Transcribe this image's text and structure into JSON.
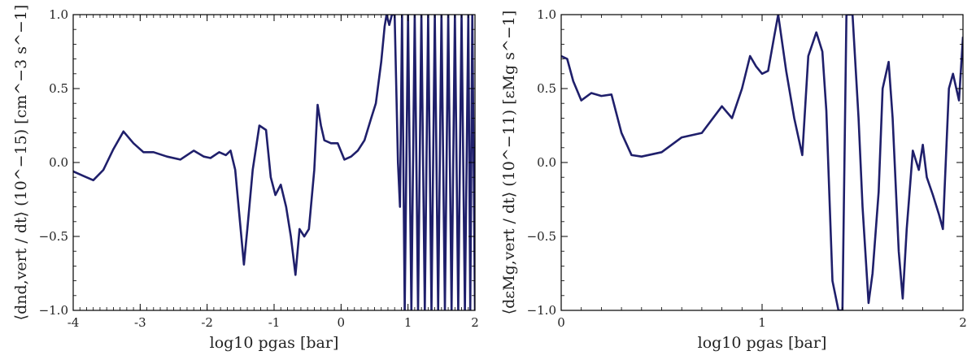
{
  "colors": {
    "series": "#1f1f6b"
  },
  "chart_data": [
    {
      "type": "line",
      "xlabel": "log10 pgas [bar]",
      "ylabel": "⟨dnd,vert / dt⟩ (10^−15) [cm^−3 s^−1]",
      "xlim": [
        -4,
        2
      ],
      "ylim": [
        -1.0,
        1.0
      ],
      "x_ticks": [
        -4,
        -3,
        -2,
        -1,
        0,
        1,
        2
      ],
      "y_ticks": [
        -1.0,
        -0.5,
        0.0,
        0.5,
        1.0
      ],
      "x_tick_labels": [
        "-4",
        "-3",
        "-2",
        "-1",
        "0",
        "1",
        "2"
      ],
      "y_tick_labels": [
        "−1.0",
        "−0.5",
        "0.0",
        "0.5",
        "1.0"
      ],
      "grid": false,
      "series": [
        {
          "x": [
            -4.0,
            -3.85,
            -3.7,
            -3.55,
            -3.4,
            -3.25,
            -3.1,
            -2.95,
            -2.8,
            -2.6,
            -2.4,
            -2.2,
            -2.05,
            -1.95,
            -1.82,
            -1.72,
            -1.65,
            -1.58,
            -1.52,
            -1.45,
            -1.4,
            -1.32,
            -1.22,
            -1.12,
            -1.05,
            -0.98,
            -0.9,
            -0.82,
            -0.75,
            -0.68,
            -0.62,
            -0.55,
            -0.48,
            -0.4,
            -0.35,
            -0.3,
            -0.25,
            -0.15,
            -0.05,
            0.05,
            0.15,
            0.25,
            0.35,
            0.45,
            0.52,
            0.6,
            0.65,
            0.68,
            0.72,
            0.76,
            0.8,
            0.85,
            0.88,
            0.91,
            0.95,
            1.0,
            1.05,
            1.1,
            1.15,
            1.2,
            1.25,
            1.3,
            1.35,
            1.4,
            1.45,
            1.5,
            1.55,
            1.6,
            1.65,
            1.7,
            1.75,
            1.8,
            1.85,
            1.9,
            1.93,
            1.96,
            2.0
          ],
          "y": [
            -0.06,
            -0.09,
            -0.12,
            -0.05,
            0.09,
            0.21,
            0.13,
            0.07,
            0.07,
            0.04,
            0.02,
            0.08,
            0.04,
            0.03,
            0.07,
            0.05,
            0.08,
            -0.05,
            -0.35,
            -0.69,
            -0.45,
            -0.05,
            0.25,
            0.22,
            -0.1,
            -0.22,
            -0.15,
            -0.3,
            -0.5,
            -0.76,
            -0.45,
            -0.5,
            -0.45,
            -0.05,
            0.39,
            0.25,
            0.15,
            0.13,
            0.13,
            0.02,
            0.04,
            0.08,
            0.15,
            0.3,
            0.4,
            0.68,
            0.92,
            1.0,
            0.93,
            1.0,
            1.0,
            0.0,
            -0.3,
            1.0,
            -1.0,
            1.0,
            -1.0,
            1.0,
            -1.0,
            1.0,
            -1.0,
            1.0,
            -1.0,
            1.0,
            -1.0,
            1.0,
            -1.0,
            1.0,
            -1.0,
            1.0,
            -1.0,
            1.0,
            -1.0,
            1.0,
            -1.0,
            1.0,
            -1.0
          ]
        }
      ]
    },
    {
      "type": "line",
      "xlabel": "log10 pgas [bar]",
      "ylabel": "⟨dεMg,vert / dt⟩ (10^−11) [εMg s^−1]",
      "xlim": [
        0,
        2
      ],
      "ylim": [
        -1.0,
        1.0
      ],
      "x_ticks": [
        0,
        1,
        2
      ],
      "y_ticks": [
        -1.0,
        -0.5,
        0.0,
        0.5,
        1.0
      ],
      "x_tick_labels": [
        "0",
        "1",
        "2"
      ],
      "y_tick_labels": [
        "−1.0",
        "−0.5",
        "0.0",
        "0.5",
        "1.0"
      ],
      "grid": false,
      "series": [
        {
          "x": [
            0.0,
            0.03,
            0.06,
            0.1,
            0.15,
            0.2,
            0.25,
            0.3,
            0.35,
            0.4,
            0.5,
            0.6,
            0.7,
            0.8,
            0.85,
            0.9,
            0.94,
            0.97,
            1.0,
            1.03,
            1.06,
            1.08,
            1.12,
            1.16,
            1.2,
            1.23,
            1.27,
            1.3,
            1.32,
            1.35,
            1.38,
            1.4,
            1.42,
            1.45,
            1.48,
            1.5,
            1.53,
            1.55,
            1.58,
            1.6,
            1.63,
            1.65,
            1.68,
            1.7,
            1.72,
            1.75,
            1.78,
            1.8,
            1.82,
            1.85,
            1.88,
            1.9,
            1.93,
            1.95,
            1.98,
            2.0
          ],
          "y": [
            0.72,
            0.7,
            0.55,
            0.42,
            0.47,
            0.45,
            0.46,
            0.2,
            0.05,
            0.04,
            0.07,
            0.17,
            0.2,
            0.38,
            0.3,
            0.5,
            0.72,
            0.65,
            0.6,
            0.62,
            0.85,
            1.0,
            0.62,
            0.3,
            0.05,
            0.72,
            0.88,
            0.75,
            0.35,
            -0.8,
            -1.0,
            -1.0,
            1.0,
            1.0,
            0.3,
            -0.3,
            -0.95,
            -0.75,
            -0.2,
            0.5,
            0.68,
            0.3,
            -0.6,
            -0.92,
            -0.45,
            0.08,
            -0.05,
            0.12,
            -0.1,
            -0.22,
            -0.35,
            -0.45,
            0.5,
            0.6,
            0.42,
            0.85
          ]
        }
      ]
    }
  ]
}
